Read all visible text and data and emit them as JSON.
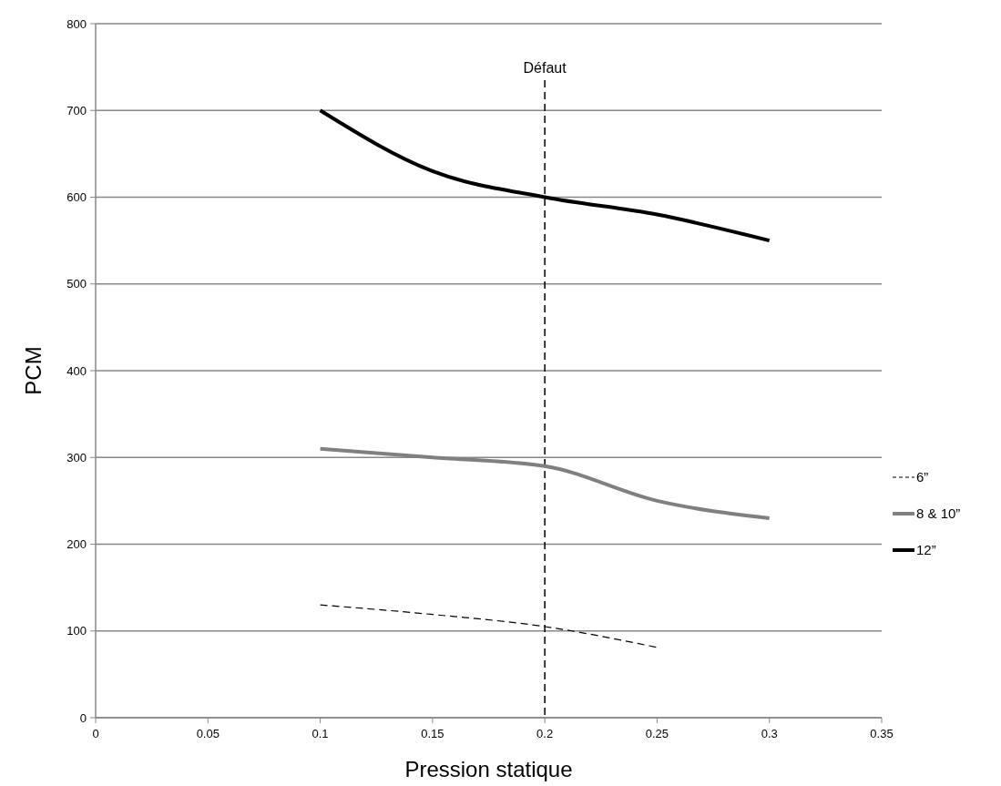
{
  "chart_data": {
    "type": "line",
    "xlabel": "Pression statique",
    "ylabel": "PCM",
    "x": [
      0.1,
      0.15,
      0.2,
      0.25,
      0.3
    ],
    "series": [
      {
        "name": "6”",
        "color": "#000000",
        "line_style": "dashed",
        "values": [
          130,
          119,
          105,
          81,
          null
        ]
      },
      {
        "name": "8 & 10”",
        "color": "#808080",
        "line_style": "solid",
        "values": [
          310,
          300,
          290,
          250,
          230
        ]
      },
      {
        "name": "12”",
        "color": "#000000",
        "line_style": "solid",
        "values": [
          700,
          630,
          600,
          580,
          550
        ]
      }
    ],
    "xlim": [
      0,
      0.35
    ],
    "xticks": [
      0,
      0.05,
      0.1,
      0.15,
      0.2,
      0.25,
      0.3,
      0.35
    ],
    "ylim": [
      0,
      800
    ],
    "yticks": [
      0,
      100,
      200,
      300,
      400,
      500,
      600,
      700,
      800
    ],
    "grid": "y",
    "legend": "right",
    "ref_lines": [
      {
        "axis": "x",
        "value": 0.2,
        "label": "Défaut",
        "line_style": "dashed",
        "color": "#000000"
      }
    ]
  }
}
